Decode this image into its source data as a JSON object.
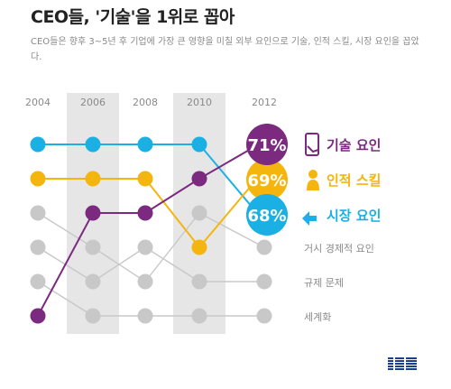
{
  "header": {
    "title": "CEO들, '기술'을 1위로 꼽아",
    "subtitle": "CEO들은 향후 3~5년 후 기업에 가장 큰 영향을 미칠 외부 요인으로 기술, 인적 스킬, 시장 요인을 꼽았다."
  },
  "logo": {
    "text": "IBM"
  },
  "colors": {
    "tech": "#7b2a7f",
    "people": "#f5b50f",
    "market": "#1ab0e3",
    "other": "#c8c8c8",
    "column_band": "#e6e6e6",
    "year_text": "#8a8a8a",
    "rest_label": "#8a8a8a"
  },
  "chart_data": {
    "type": "bump",
    "x": [
      "2004",
      "2006",
      "2008",
      "2010",
      "2012"
    ],
    "shaded_years": [
      "2006",
      "2010"
    ],
    "series": [
      {
        "key": "tech",
        "name": "기술 요인",
        "ranks": [
          6,
          3,
          3,
          2,
          1
        ],
        "value_2012": "71%",
        "icon": "smartphone-icon"
      },
      {
        "key": "people",
        "name": "인적 스킬",
        "ranks": [
          2,
          2,
          2,
          4,
          2
        ],
        "value_2012": "69%",
        "icon": "person-icon"
      },
      {
        "key": "market",
        "name": "시장 요인",
        "ranks": [
          1,
          1,
          1,
          1,
          3
        ],
        "value_2012": "68%",
        "icon": "market-arrows-icon"
      },
      {
        "key": "macro",
        "name": "거시 경제적 요인",
        "ranks": [
          3,
          4,
          5,
          3,
          4
        ]
      },
      {
        "key": "regulation",
        "name": "규제 문제",
        "ranks": [
          4,
          5,
          4,
          5,
          5
        ]
      },
      {
        "key": "globalization",
        "name": "세계화",
        "ranks": [
          5,
          6,
          6,
          6,
          6
        ]
      }
    ]
  }
}
